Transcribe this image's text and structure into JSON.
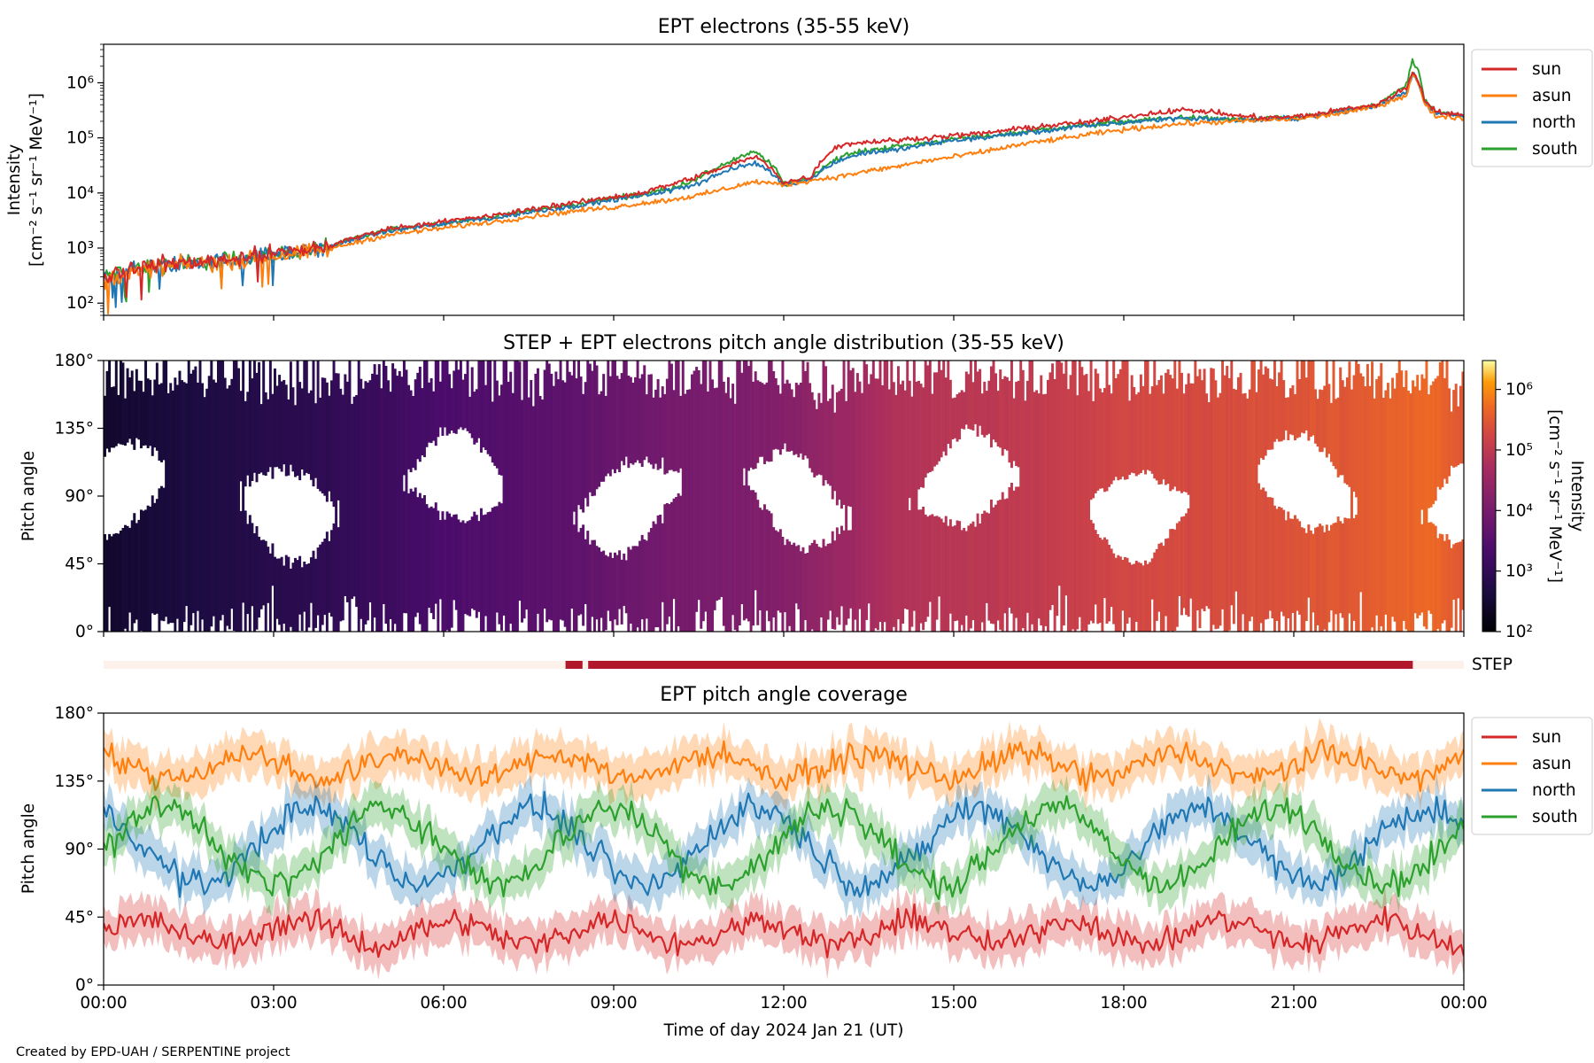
{
  "figure": {
    "credit": "Created by EPD-UAH / SERPENTINE project",
    "xlabel": "Time of day 2024 Jan 21 (UT)",
    "x_ticks": [
      "00:00",
      "03:00",
      "06:00",
      "09:00",
      "12:00",
      "15:00",
      "18:00",
      "21:00",
      "00:00"
    ]
  },
  "colors": {
    "sun": "#d62728",
    "asun": "#ff7f0e",
    "north": "#1f77b4",
    "south": "#2ca02c",
    "step_bar": "#b2182b",
    "step_bg": "#fdf1ec"
  },
  "chart_data": [
    {
      "id": "intensity",
      "type": "line",
      "title": "EPT electrons (35-55 keV)",
      "ylabel_line1": "Intensity",
      "ylabel_line2": "[cm⁻² s⁻¹ sr⁻¹ MeV⁻¹]",
      "yscale": "log",
      "ylim": [
        60,
        5000000
      ],
      "xlim_hours": [
        0,
        24
      ],
      "y_ticks": [
        "10²",
        "10³",
        "10⁴",
        "10⁵",
        "10⁶"
      ],
      "legend": "top-right, outside",
      "x_hours": [
        0,
        0.5,
        1,
        1.5,
        2,
        2.5,
        3,
        3.5,
        4,
        4.5,
        5,
        5.5,
        6,
        6.5,
        7,
        7.5,
        8,
        8.5,
        9,
        9.5,
        10,
        10.5,
        11,
        11.5,
        12,
        12.5,
        13,
        13.5,
        14,
        14.5,
        15,
        15.5,
        16,
        16.5,
        17,
        17.5,
        18,
        18.5,
        19,
        19.5,
        20,
        20.5,
        21,
        21.5,
        22,
        22.5,
        23,
        23.1,
        23.3,
        23.5,
        24
      ],
      "series": [
        {
          "name": "sun",
          "values": [
            300,
            450,
            500,
            550,
            600,
            700,
            800,
            900,
            1100,
            1600,
            2200,
            2600,
            3000,
            3500,
            4000,
            5000,
            6000,
            7000,
            8500,
            10000,
            14000,
            20000,
            30000,
            45000,
            15000,
            20000,
            75000,
            85000,
            90000,
            100000,
            110000,
            120000,
            140000,
            160000,
            180000,
            200000,
            240000,
            280000,
            320000,
            300000,
            250000,
            230000,
            240000,
            280000,
            350000,
            400000,
            800000,
            1600000,
            500000,
            300000,
            250000
          ]
        },
        {
          "name": "asun",
          "values": [
            250,
            350,
            450,
            500,
            550,
            600,
            700,
            800,
            950,
            1300,
            1700,
            2000,
            2300,
            2700,
            3100,
            3700,
            4300,
            4900,
            5500,
            6500,
            7500,
            9000,
            12000,
            16000,
            14000,
            17000,
            20000,
            25000,
            30000,
            38000,
            45000,
            55000,
            70000,
            85000,
            100000,
            120000,
            140000,
            160000,
            180000,
            190000,
            200000,
            210000,
            220000,
            250000,
            300000,
            380000,
            600000,
            1500000,
            400000,
            250000,
            230000
          ]
        },
        {
          "name": "north",
          "values": [
            280,
            400,
            480,
            520,
            570,
            650,
            750,
            850,
            1000,
            1500,
            2000,
            2400,
            2700,
            3200,
            3600,
            4500,
            5200,
            6200,
            7500,
            9000,
            11000,
            15000,
            25000,
            35000,
            14000,
            18000,
            40000,
            55000,
            60000,
            75000,
            90000,
            100000,
            115000,
            130000,
            150000,
            170000,
            190000,
            210000,
            230000,
            220000,
            210000,
            215000,
            225000,
            260000,
            320000,
            380000,
            700000,
            1500000,
            450000,
            280000,
            240000
          ]
        },
        {
          "name": "south",
          "values": [
            290,
            420,
            490,
            540,
            580,
            680,
            780,
            880,
            1050,
            1550,
            2100,
            2500,
            2850,
            3300,
            3800,
            4700,
            5500,
            6500,
            8000,
            9500,
            12000,
            18000,
            35000,
            55000,
            14500,
            19000,
            45000,
            60000,
            70000,
            80000,
            95000,
            105000,
            120000,
            140000,
            160000,
            175000,
            195000,
            215000,
            235000,
            225000,
            215000,
            220000,
            230000,
            265000,
            330000,
            390000,
            900000,
            2500000,
            480000,
            290000,
            245000
          ]
        }
      ]
    },
    {
      "id": "pad",
      "type": "heatmap",
      "title": "STEP + EPT electrons pitch angle distribution (35-55 keV)",
      "ylabel": "Pitch angle",
      "ylim": [
        0,
        180
      ],
      "y_ticks": [
        "0°",
        "45°",
        "90°",
        "135°",
        "180°"
      ],
      "colorbar": {
        "label_line1": "Intensity",
        "label_line2": "[cm⁻² s⁻¹ sr⁻¹ MeV⁻¹]",
        "scale": "log",
        "range": [
          100,
          3000000
        ],
        "ticks": [
          "10²",
          "10³",
          "10⁴",
          "10⁵",
          "10⁶"
        ],
        "colormap": "inferno"
      },
      "intensity_by_hour": [
        [
          0,
          300
        ],
        [
          2,
          550
        ],
        [
          4,
          900
        ],
        [
          6,
          2300
        ],
        [
          8,
          4000
        ],
        [
          10,
          9000
        ],
        [
          12,
          15000
        ],
        [
          14,
          70000
        ],
        [
          16,
          100000
        ],
        [
          18,
          180000
        ],
        [
          20,
          220000
        ],
        [
          22,
          320000
        ],
        [
          23.4,
          500000
        ],
        [
          24,
          300000
        ]
      ]
    },
    {
      "id": "step_availability",
      "type": "bar",
      "label": "STEP",
      "intervals_hours": [
        [
          8.15,
          8.45
        ],
        [
          8.55,
          23.1
        ]
      ]
    },
    {
      "id": "coverage",
      "type": "line",
      "title": "EPT pitch angle coverage",
      "ylabel": "Pitch angle",
      "ylim": [
        0,
        180
      ],
      "y_ticks": [
        "0°",
        "45°",
        "90°",
        "135°",
        "180°"
      ],
      "legend": "top-right, outside",
      "series": [
        {
          "name": "sun",
          "mean": 35,
          "spread": 18
        },
        {
          "name": "asun",
          "mean": 145,
          "spread": 18
        },
        {
          "name": "north",
          "mean": 85,
          "spread": 30
        },
        {
          "name": "south",
          "mean": 100,
          "spread": 30
        }
      ]
    }
  ]
}
